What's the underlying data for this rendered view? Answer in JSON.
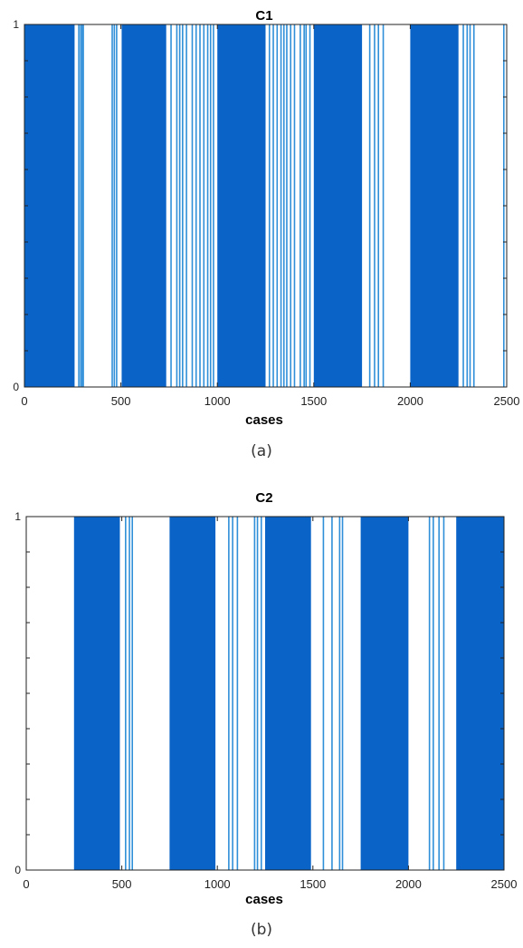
{
  "colors": {
    "bar": "#0a64c8",
    "bar_light": "#2f8fd8",
    "axis": "#222222",
    "frame": "#000000"
  },
  "chart_data": [
    {
      "type": "bar",
      "title": "C1",
      "xlabel": "cases",
      "ylabel": "",
      "xlim": [
        0,
        2500
      ],
      "ylim": [
        0,
        1
      ],
      "xticks": [
        "0",
        "500",
        "1000",
        "1500",
        "2000",
        "2500"
      ],
      "yticks": [
        "0",
        "1"
      ],
      "caption": "(a)",
      "grid": false,
      "value_one_segments": [
        [
          0,
          260
        ],
        [
          504,
          735
        ],
        [
          1000,
          1250
        ],
        [
          1500,
          1750
        ],
        [
          2000,
          2250
        ]
      ],
      "value_one_spikes": [
        282,
        292,
        300,
        305,
        455,
        466,
        478,
        760,
        790,
        805,
        820,
        840,
        870,
        890,
        910,
        930,
        950,
        965,
        980,
        1270,
        1290,
        1310,
        1330,
        1345,
        1360,
        1380,
        1400,
        1430,
        1450,
        1460,
        1480,
        1790,
        1815,
        1835,
        1860,
        2275,
        2295,
        2310,
        2330,
        2485
      ]
    },
    {
      "type": "bar",
      "title": "C2",
      "xlabel": "cases",
      "ylabel": "",
      "xlim": [
        0,
        2500
      ],
      "ylim": [
        0,
        1
      ],
      "xticks": [
        "0",
        "500",
        "1000",
        "1500",
        "2000",
        "2500"
      ],
      "yticks": [
        "0",
        "1"
      ],
      "caption": "(b)",
      "grid": false,
      "value_one_segments": [
        [
          250,
          490
        ],
        [
          750,
          990
        ],
        [
          1250,
          1490
        ],
        [
          1750,
          2000
        ],
        [
          2250,
          2500
        ]
      ],
      "value_one_spikes": [
        520,
        540,
        555,
        1060,
        1080,
        1105,
        1195,
        1210,
        1230,
        1555,
        1600,
        1640,
        1655,
        2110,
        2130,
        2160,
        2185
      ]
    }
  ]
}
